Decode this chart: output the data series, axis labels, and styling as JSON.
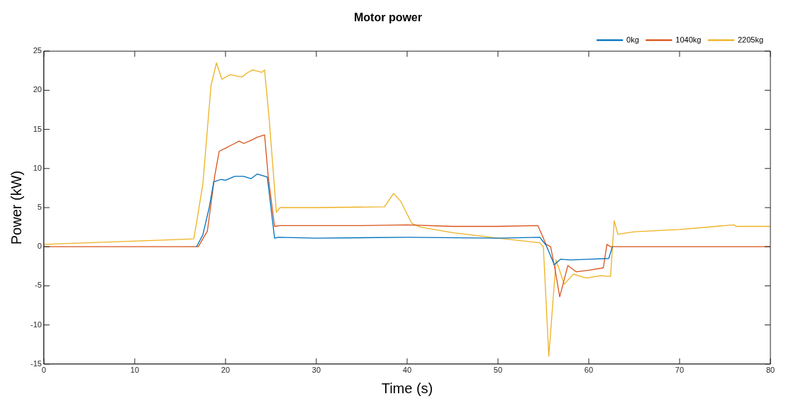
{
  "chart_data": {
    "type": "line",
    "title": "Motor power",
    "xlabel": "Time (s)",
    "ylabel": "Power (kW)",
    "xlim": [
      0,
      80
    ],
    "xticks": [
      0,
      10,
      20,
      30,
      40,
      50,
      60,
      70,
      80
    ],
    "ylim": [
      -15,
      25
    ],
    "yticks": [
      -15,
      -10,
      -5,
      0,
      5,
      10,
      15,
      20,
      25
    ],
    "grid": false,
    "legend": "top right",
    "marker": "none",
    "line_style": "solid",
    "series": [
      {
        "name": "0kg",
        "color": "#0072bd",
        "x": [
          16.8,
          17.5,
          18.2,
          18.7,
          19.5,
          20,
          21,
          22,
          22.8,
          23.5,
          24.6,
          25,
          25.4,
          25.8,
          30,
          40,
          50,
          54.6,
          55.3,
          56.2,
          56.9,
          58,
          60,
          62.2,
          62.6
        ],
        "values": [
          0,
          1.5,
          5,
          8.3,
          8.6,
          8.5,
          9,
          9,
          8.7,
          9.3,
          8.9,
          5,
          1.1,
          1.2,
          1.1,
          1.2,
          1.1,
          1.2,
          0.2,
          -2.3,
          -1.6,
          -1.7,
          -1.6,
          -1.5,
          0
        ]
      },
      {
        "name": "1040kg",
        "color": "#d95319",
        "x": [
          0,
          17,
          18,
          18.8,
          19.3,
          20,
          21,
          21.5,
          22,
          22.8,
          23.5,
          24.3,
          24.7,
          25.4,
          26,
          30,
          35,
          40,
          45,
          50,
          54.4,
          55.3,
          55.8,
          56.3,
          56.8,
          57.7,
          58.6,
          60,
          61.6,
          62,
          62.4,
          80
        ],
        "values": [
          0,
          0,
          2,
          9,
          12.2,
          12.6,
          13.2,
          13.5,
          13.2,
          13.6,
          14,
          14.3,
          9,
          2.6,
          2.7,
          2.7,
          2.7,
          2.8,
          2.6,
          2.6,
          2.7,
          0.3,
          0,
          -3,
          -6.4,
          -2.4,
          -3.2,
          -3,
          -2.7,
          0.3,
          0,
          0
        ]
      },
      {
        "name": "2205kg",
        "color": "#edb120",
        "x": [
          0,
          16.5,
          16.8,
          17.5,
          18.4,
          19,
          19.6,
          20.5,
          21.8,
          22.5,
          23,
          24,
          24.3,
          24.8,
          25.6,
          26,
          30,
          37.5,
          38.5,
          39.3,
          40.5,
          41.5,
          45,
          50,
          54.6,
          55,
          55.6,
          56.4,
          57.3,
          58.3,
          59.7,
          61.3,
          62.4,
          62.8,
          63.2,
          65,
          70,
          76,
          76.2,
          80
        ],
        "values": [
          0.3,
          1,
          3,
          8,
          20.6,
          23.5,
          21.4,
          22,
          21.7,
          22.3,
          22.6,
          22.3,
          22.6,
          16.4,
          4.4,
          5,
          5,
          5.1,
          6.8,
          5.8,
          3,
          2.5,
          1.8,
          1.1,
          0.5,
          0,
          -14,
          -1.7,
          -4.8,
          -3.5,
          -4,
          -3.7,
          -3.8,
          3.3,
          1.6,
          1.9,
          2.2,
          2.8,
          2.6,
          2.6
        ]
      }
    ]
  }
}
